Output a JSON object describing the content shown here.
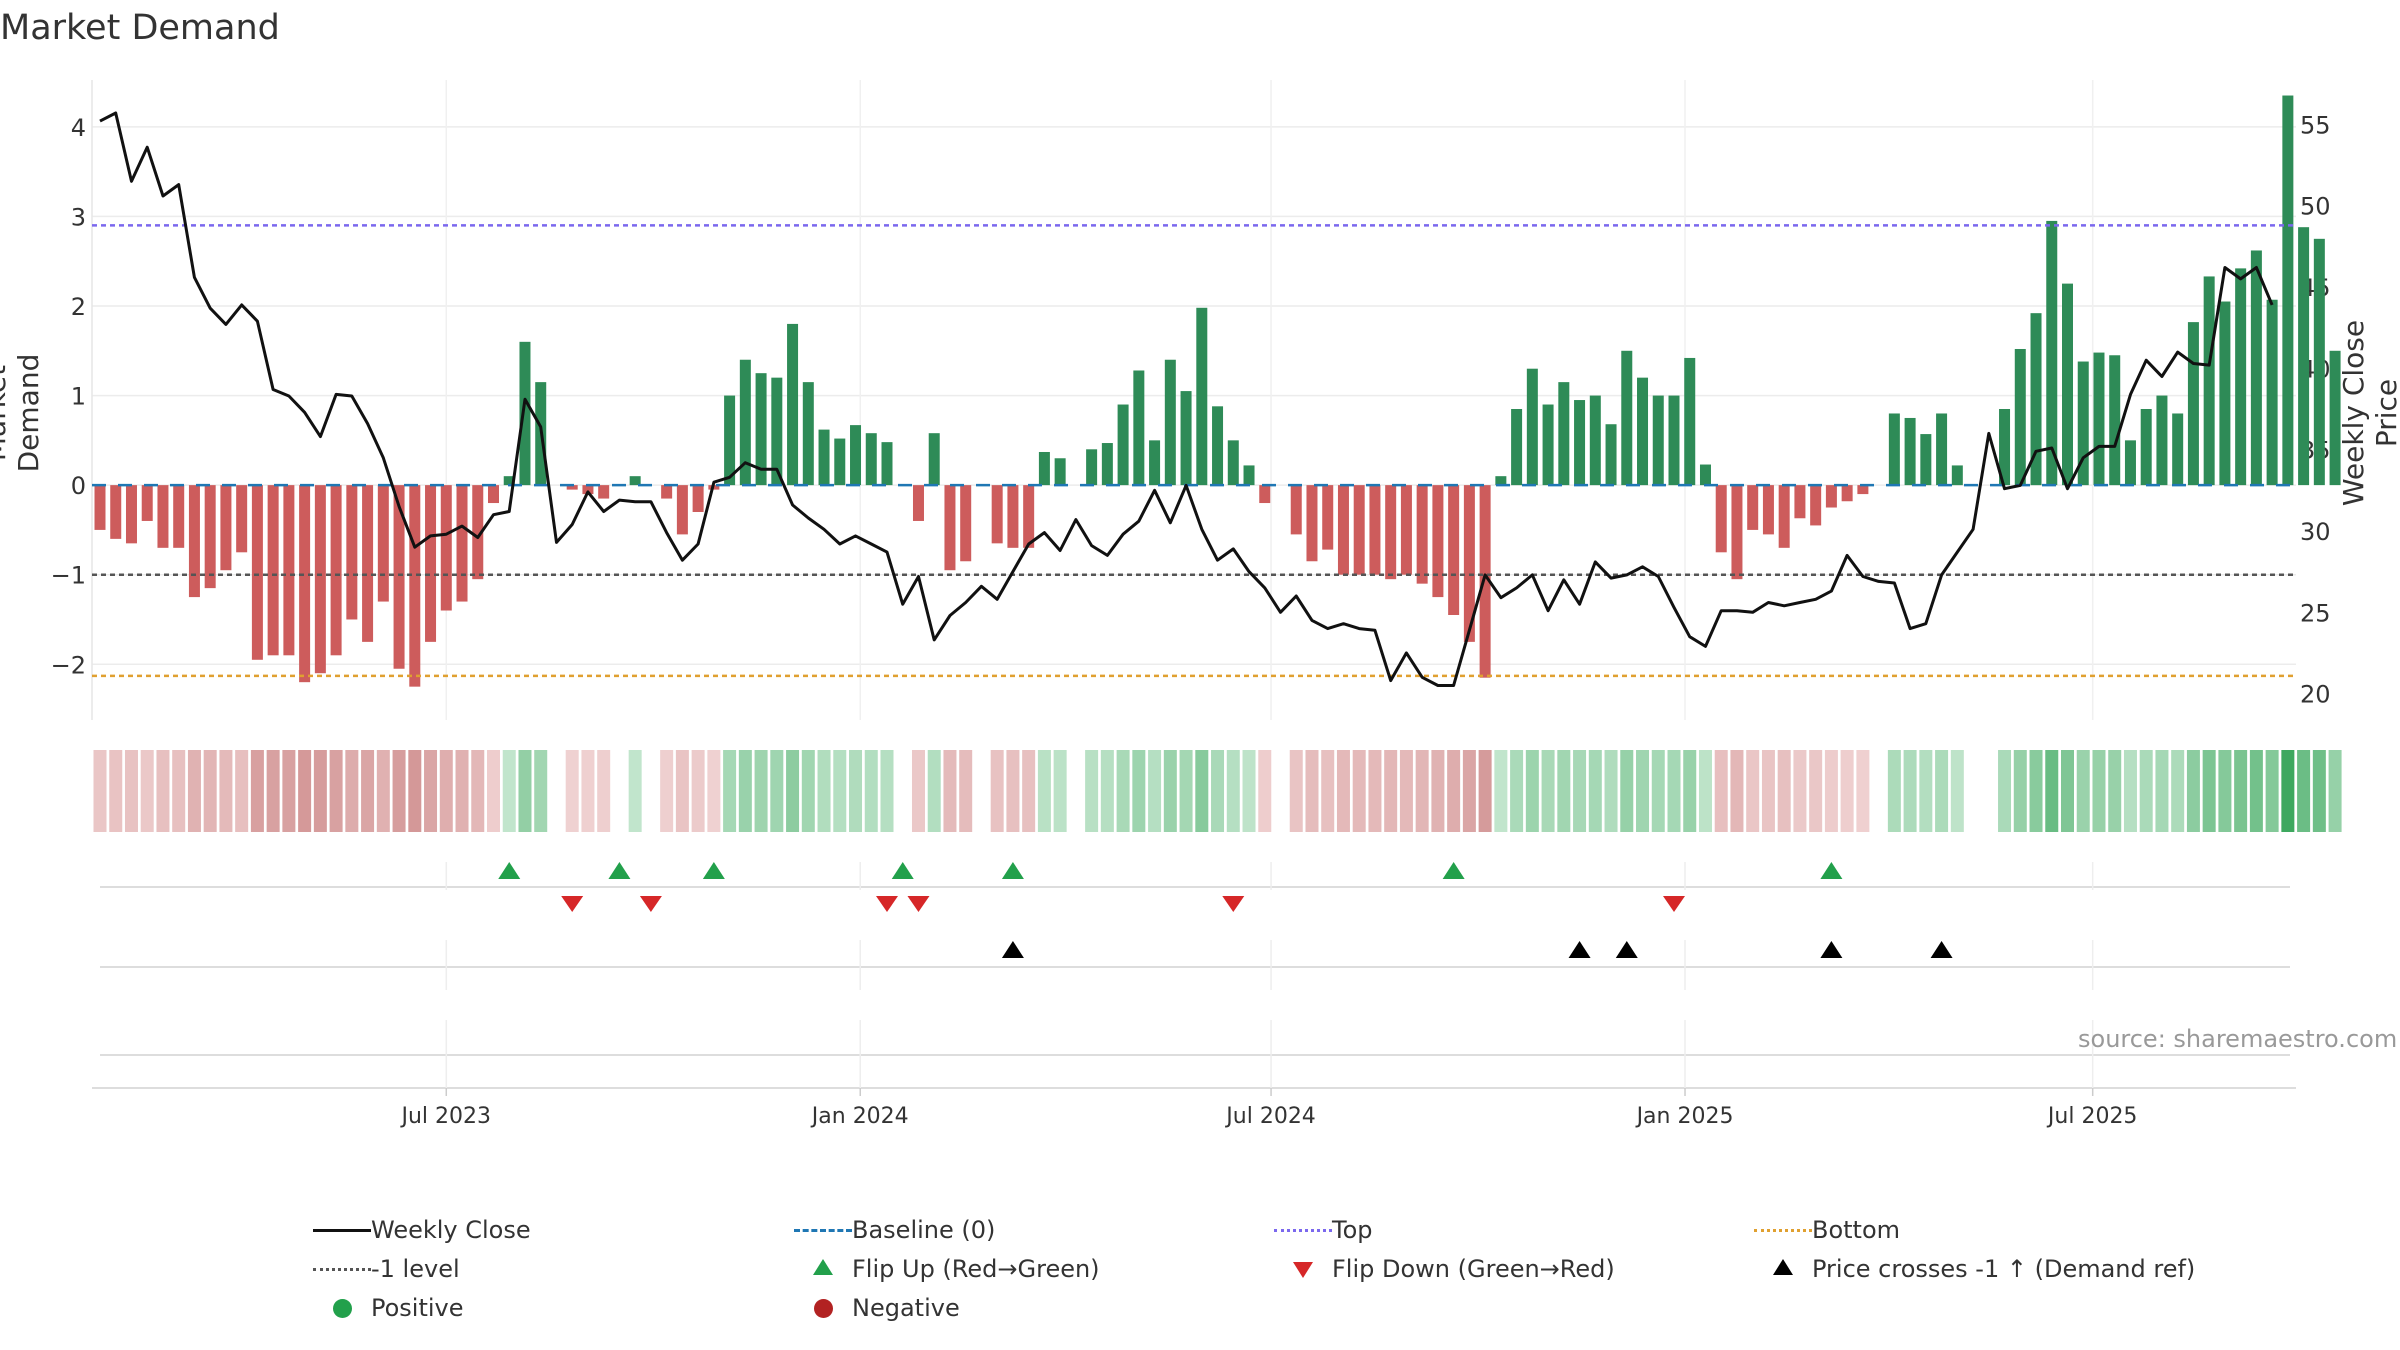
{
  "title": "Market Demand",
  "ylabel_left": "Market Demand",
  "ylabel_right": "Weekly Close Price",
  "source": "source: sharemaestro.com",
  "colors": {
    "pos": "#2e8b57",
    "neg": "#cd5c5c",
    "price": "#111111",
    "top": "#7b68ee",
    "bottom": "#e0a030",
    "minus1": "#555555",
    "baseline": "#1f77b4",
    "flipup": "#22a04b",
    "flipdown": "#d62728",
    "cross": "#000000",
    "dot_pos": "#22a04b",
    "dot_neg": "#b22222"
  },
  "legend": [
    {
      "key": "close",
      "label": "Weekly Close"
    },
    {
      "key": "baseline",
      "label": "Baseline (0)"
    },
    {
      "key": "top",
      "label": "Top"
    },
    {
      "key": "bottom",
      "label": "Bottom"
    },
    {
      "key": "minus1",
      "label": "-1 level"
    },
    {
      "key": "flipup",
      "label": "Flip Up (Red→Green)"
    },
    {
      "key": "flipdown",
      "label": "Flip Down (Green→Red)"
    },
    {
      "key": "cross",
      "label": "Price crosses -1 ↑ (Demand ref)"
    },
    {
      "key": "positive",
      "label": "Positive"
    },
    {
      "key": "negative",
      "label": "Negative"
    }
  ],
  "chart_data": {
    "type": "bar",
    "title": "Market Demand",
    "xlabel": "",
    "ylabel": "Market Demand",
    "y2label": "Weekly Close Price",
    "ylim": [
      -2.6,
      4.3
    ],
    "y2lim": [
      18.5,
      56.5
    ],
    "yticks": [
      -2,
      -1,
      0,
      1,
      2,
      3,
      4
    ],
    "y2ticks": [
      20,
      25,
      30,
      35,
      40,
      45,
      50,
      55
    ],
    "x_start_week": 0,
    "x_ticks": [
      {
        "label": "Jul 2023",
        "week": 22
      },
      {
        "label": "Jan 2024",
        "week": 48.3
      },
      {
        "label": "Jul 2024",
        "week": 74.4
      },
      {
        "label": "Jan 2025",
        "week": 100.7
      },
      {
        "label": "Jul 2025",
        "week": 126.6
      }
    ],
    "top_level": 2.9,
    "bottom_level": -2.13,
    "minus1_level": -1.0,
    "baseline": 0,
    "demand": [
      -0.5,
      -0.6,
      -0.65,
      -0.4,
      -0.7,
      -0.7,
      -1.25,
      -1.15,
      -0.95,
      -0.75,
      -1.95,
      -1.9,
      -1.9,
      -2.2,
      -2.1,
      -1.9,
      -1.5,
      -1.75,
      -1.3,
      -2.05,
      -2.25,
      -1.75,
      -1.4,
      -1.3,
      -1.05,
      -0.2,
      0.1,
      1.6,
      1.15,
      0.0,
      -0.05,
      -0.1,
      -0.15,
      0.0,
      0.1,
      0.0,
      -0.15,
      -0.55,
      -0.3,
      -0.05,
      1.0,
      1.4,
      1.25,
      1.2,
      1.8,
      1.15,
      0.62,
      0.52,
      0.67,
      0.58,
      0.48,
      0.0,
      -0.4,
      0.58,
      -0.95,
      -0.85,
      0.0,
      -0.65,
      -0.7,
      -0.7,
      0.37,
      0.3,
      0.0,
      0.4,
      0.47,
      0.9,
      1.28,
      0.5,
      1.4,
      1.05,
      1.98,
      0.88,
      0.5,
      0.22,
      -0.2,
      0.0,
      -0.55,
      -0.85,
      -0.72,
      -1.0,
      -1.0,
      -1.0,
      -1.05,
      -1.0,
      -1.1,
      -1.25,
      -1.45,
      -1.75,
      -2.15,
      0.1,
      0.85,
      1.3,
      0.9,
      1.15,
      0.95,
      1.0,
      0.68,
      1.5,
      1.2,
      1.0,
      1.0,
      1.42,
      0.23,
      -0.75,
      -1.05,
      -0.5,
      -0.55,
      -0.7,
      -0.37,
      -0.45,
      -0.25,
      -0.18,
      -0.1,
      0.0,
      0.8,
      0.75,
      0.57,
      0.8,
      0.22,
      0.0,
      0.0,
      0.85,
      1.52,
      1.92,
      2.95,
      2.25,
      1.38,
      1.48,
      1.45,
      0.5,
      0.85,
      1.0,
      0.8,
      1.82,
      2.33,
      2.05,
      2.42,
      2.62,
      2.07,
      4.35,
      2.88,
      2.75,
      1.5
    ],
    "close": [
      55.2,
      55.7,
      51.5,
      53.6,
      50.6,
      51.3,
      45.6,
      43.7,
      42.7,
      43.9,
      42.9,
      38.7,
      38.3,
      37.3,
      35.8,
      38.4,
      38.3,
      36.6,
      34.5,
      31.5,
      29.0,
      29.7,
      29.8,
      30.3,
      29.6,
      31.0,
      31.2,
      38.1,
      36.4,
      29.3,
      30.4,
      32.4,
      31.2,
      31.9,
      31.8,
      31.8,
      29.9,
      28.2,
      29.2,
      33.0,
      33.3,
      34.2,
      33.8,
      33.8,
      31.6,
      30.8,
      30.1,
      29.2,
      29.7,
      29.2,
      28.7,
      25.5,
      27.2,
      23.3,
      24.8,
      25.6,
      26.6,
      25.8,
      27.5,
      29.2,
      29.9,
      28.8,
      30.7,
      29.1,
      28.5,
      29.8,
      30.6,
      32.5,
      30.5,
      32.8,
      30.1,
      28.2,
      28.9,
      27.5,
      26.5,
      25.0,
      26.0,
      24.5,
      24.0,
      24.3,
      24.0,
      23.9,
      20.8,
      22.5,
      21.0,
      20.5,
      20.5,
      23.9,
      27.3,
      25.9,
      26.5,
      27.3,
      25.1,
      27.0,
      25.5,
      28.1,
      27.1,
      27.3,
      27.8,
      27.2,
      25.3,
      23.5,
      22.9,
      25.1,
      25.1,
      25.0,
      25.6,
      25.4,
      25.6,
      25.8,
      26.3,
      28.5,
      27.2,
      26.9,
      26.8,
      24.0,
      24.3,
      27.3,
      28.7,
      30.1,
      36.0,
      32.6,
      32.8,
      34.9,
      35.1,
      32.6,
      34.5,
      35.2,
      35.2,
      38.4,
      40.5,
      39.5,
      41.0,
      40.3,
      40.2,
      46.2,
      45.5,
      46.2,
      43.9
    ],
    "flip_up": [
      26,
      33,
      39,
      51,
      58,
      86,
      110
    ],
    "flip_down": [
      30,
      35,
      50,
      52,
      72,
      100
    ],
    "price_cross": [
      58,
      94,
      97,
      110,
      117
    ],
    "dot_points": []
  }
}
